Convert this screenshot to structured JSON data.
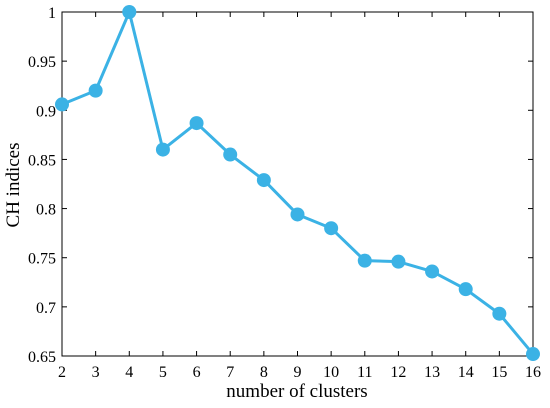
{
  "chart_data": {
    "type": "line",
    "title": "",
    "xlabel": "number of clusters",
    "ylabel": "CH indices",
    "x": [
      2,
      3,
      4,
      5,
      6,
      7,
      8,
      9,
      10,
      11,
      12,
      13,
      14,
      15,
      16
    ],
    "series": [
      {
        "values": [
          0.906,
          0.92,
          1.0,
          0.86,
          0.887,
          0.855,
          0.829,
          0.794,
          0.78,
          0.747,
          0.746,
          0.736,
          0.718,
          0.693,
          0.652
        ],
        "color": "#3bb2e5",
        "marker": "circle"
      }
    ],
    "xlim": [
      2,
      16
    ],
    "ylim": [
      0.65,
      1
    ],
    "xticks": [
      2,
      3,
      4,
      5,
      6,
      7,
      8,
      9,
      10,
      11,
      12,
      13,
      14,
      15,
      16
    ],
    "yticks": [
      "0.65",
      "0.7",
      "0.75",
      "0.8",
      "0.85",
      "0.9",
      "0.95",
      "1"
    ],
    "ytick_values": [
      0.65,
      0.7,
      0.75,
      0.8,
      0.85,
      0.9,
      0.95,
      1
    ],
    "grid": false,
    "legend": "none"
  }
}
